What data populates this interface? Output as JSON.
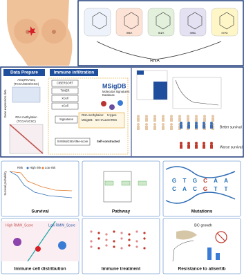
{
  "top": {
    "modifications": [
      "m6A",
      "m1A",
      "m5C",
      "m7G"
    ],
    "rna": "RNA"
  },
  "data_prepare": {
    "title": "Data Prepare",
    "y_label": "Gene expression data",
    "sources": [
      "ArrayRNAseq",
      "(TCGA/GEO/ICGC)",
      "RNA methylation",
      "(TCGA/UCSC)"
    ]
  },
  "immune_infiltration": {
    "title": "Immune infiltration",
    "methods": [
      "CIBERSORT",
      "TIMER",
      "xCell",
      "xCell"
    ],
    "msigdb": "MSigDB",
    "msigdb_sub": [
      "Molecular Signatures",
      "Database"
    ],
    "signatures": "Signatures",
    "signature_notes": [
      "RNA methylation:",
      "5 types",
      "MSigDB:",
      "50 HALLMARKS"
    ],
    "score": "SVM/ssGSEA/Me-score",
    "self": "Self-constructed"
  },
  "outcomes": [
    "Better survival",
    "Worse survival"
  ],
  "survival": {
    "y_label": "Survival probability",
    "legend": [
      "Risk",
      "High risk",
      "Low risk"
    ]
  },
  "mutations": {
    "top": [
      "G",
      "T",
      "G",
      "C",
      "A",
      "A"
    ],
    "bottom": [
      "C",
      "A",
      "C",
      "G",
      "T",
      "T"
    ]
  },
  "immune_cells": [
    "High RMW_Score",
    "Low RMW_Score"
  ],
  "resistance": "BC growth",
  "panels": [
    "Survival",
    "Pathway",
    "Mutations",
    "Immune cell distribution",
    "Immune treatment",
    "Resistance to alisertib"
  ]
}
